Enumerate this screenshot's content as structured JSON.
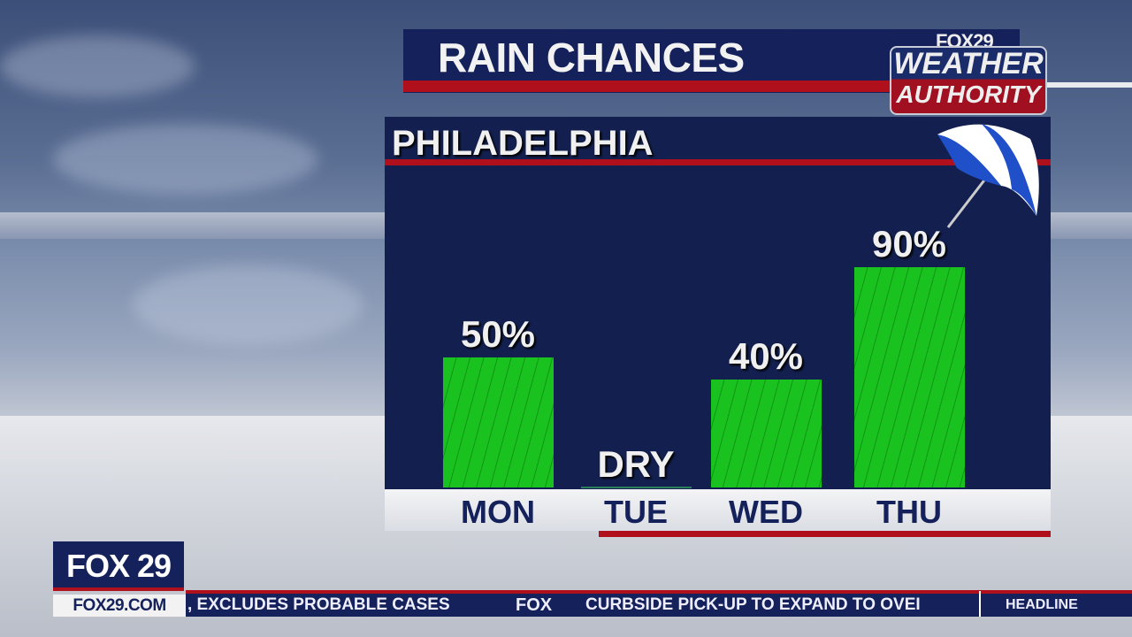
{
  "header": {
    "title": "RAIN CHANCES",
    "logo_top": "FOX29",
    "logo_line1": "WEATHER",
    "logo_line2": "AUTHORITY"
  },
  "location": "PHILADELPHIA",
  "chart_data": {
    "type": "bar",
    "title": "RAIN CHANCES",
    "categories": [
      "MON",
      "TUE",
      "WED",
      "THU"
    ],
    "values": [
      50,
      0,
      40,
      90
    ],
    "labels": [
      "50%",
      "DRY",
      "40%",
      "90%"
    ],
    "unit": "%",
    "ylim": [
      0,
      100
    ],
    "bar_color": "#19c21e",
    "grid": false
  },
  "icons": {
    "umbrella": "umbrella-icon"
  },
  "footer": {
    "station": "FOX 29",
    "url": "FOX29.COM",
    "ticker_1": ", EXCLUDES PROBABLE CASES",
    "ticker_brand": "FOX",
    "ticker_2": "CURBSIDE PICK-UP TO EXPAND TO OVEI",
    "section": "HEADLINE"
  },
  "colors": {
    "navy": "#14215a",
    "red": "#b0101c",
    "green": "#19c21e"
  }
}
